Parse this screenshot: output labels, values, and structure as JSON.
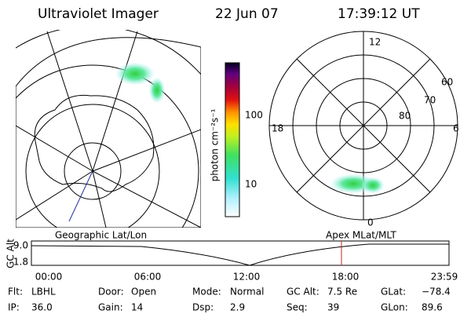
{
  "header": {
    "instrument": "Ultraviolet Imager",
    "date": "22 Jun 07",
    "time": "17:39:12 UT"
  },
  "colorbar": {
    "unit": "photon cm⁻²s⁻¹",
    "ticks": [
      "100",
      "10"
    ]
  },
  "left_map": {
    "label": "Geographic Lat/Lon"
  },
  "right_map": {
    "label": "Apex MLat/MLT",
    "mlt_labels": [
      "12",
      "18",
      "6",
      "0"
    ],
    "lat_labels": [
      "60",
      "70",
      "80"
    ]
  },
  "altitude": {
    "axis_label": "GC Alt",
    "yticks": [
      "9.0",
      "1.8"
    ],
    "xticks": [
      "00:00",
      "06:00",
      "12:00",
      "18:00",
      "23:59"
    ]
  },
  "footer": {
    "rows": [
      [
        {
          "label": "Flt:",
          "value": "LBHL"
        },
        {
          "label": "Door:",
          "value": "Open"
        },
        {
          "label": "Mode:",
          "value": "Normal"
        },
        {
          "label": "GC Alt:",
          "value": "7.5 Re"
        },
        {
          "label": "GLat:",
          "value": "−78.4"
        }
      ],
      [
        {
          "label": "IP:",
          "value": "36.0"
        },
        {
          "label": "Gain:",
          "value": "14"
        },
        {
          "label": "Dsp:",
          "value": "2.9"
        },
        {
          "label": "Seq:",
          "value": "39"
        },
        {
          "label": "GLon:",
          "value": "89.6"
        }
      ]
    ]
  }
}
